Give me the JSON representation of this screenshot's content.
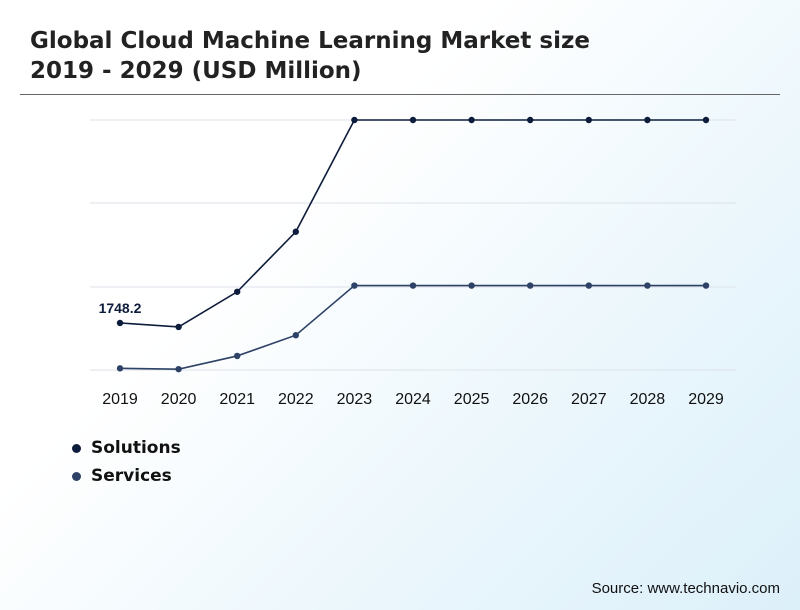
{
  "title": {
    "line1": "Global Cloud Machine Learning Market size",
    "line2": "2019 - 2029 (USD Million)"
  },
  "source": "Source: www.technavio.com",
  "colors": {
    "solutions": "#0e1c3c",
    "services": "#2d4266",
    "grid": "#dde2ea"
  },
  "chart_data": {
    "type": "line",
    "title": "Global Cloud Machine Learning Market size 2019 - 2029 (USD Million)",
    "x": [
      "2019",
      "2020",
      "2021",
      "2022",
      "2023",
      "2024",
      "2025",
      "2026",
      "2027",
      "2028",
      "2029"
    ],
    "series": [
      {
        "name": "Solutions",
        "values": [
          1748.2,
          1700,
          2125,
          2850,
          4200,
          4200,
          4200,
          4200,
          4200,
          4200,
          4200
        ],
        "labels": [
          "1748.2",
          "",
          "",
          "",
          "",
          "",
          "",
          "",
          "",
          "",
          ""
        ]
      },
      {
        "name": "Services",
        "values": [
          1200,
          1190,
          1350,
          1600,
          2200,
          2200,
          2200,
          2200,
          2200,
          2200,
          2200
        ]
      }
    ],
    "ylim": [
      1180,
      4200
    ],
    "grid": true,
    "legend": "bottom-left"
  }
}
